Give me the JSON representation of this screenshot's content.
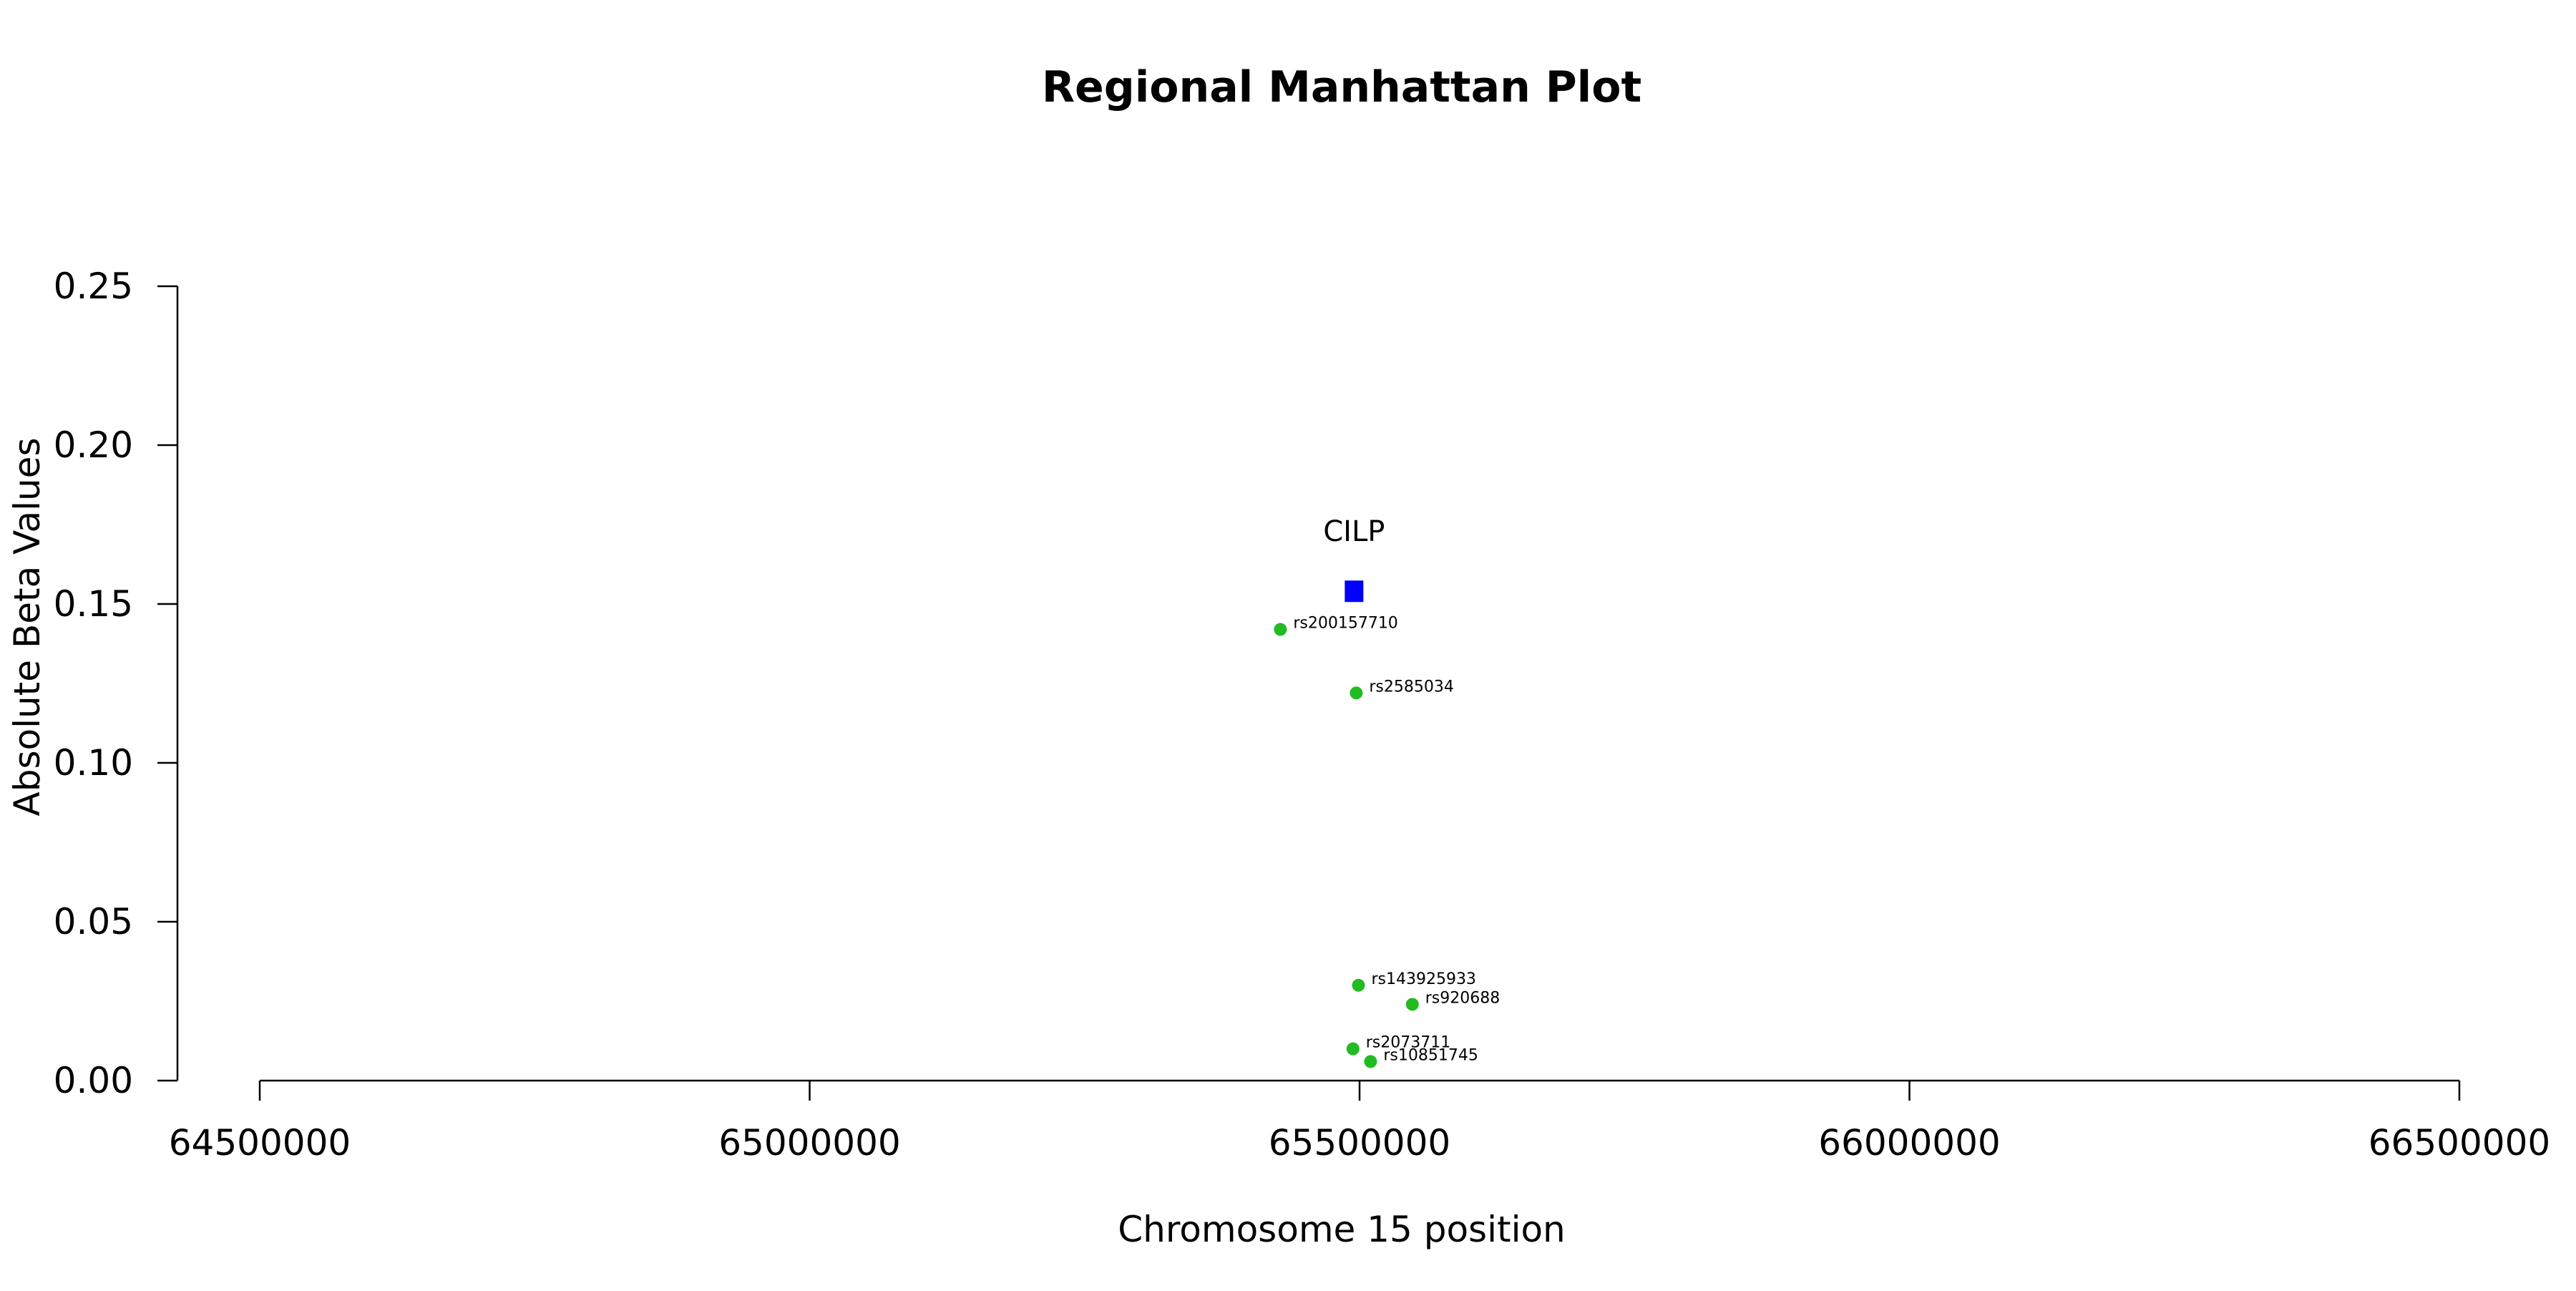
{
  "chart_data": {
    "type": "scatter",
    "title": "Regional Manhattan Plot",
    "xlabel": "Chromosome 15 position",
    "ylabel": "Absolute Beta Values",
    "xlim": [
      64500000,
      66500000
    ],
    "ylim": [
      0,
      0.25
    ],
    "x_ticks": [
      64500000,
      65000000,
      65500000,
      66000000,
      66500000
    ],
    "x_tick_labels": [
      "64500000",
      "65000000",
      "65500000",
      "66000000",
      "66500000"
    ],
    "y_ticks": [
      0,
      0.05,
      0.1,
      0.15,
      0.2,
      0.25
    ],
    "y_tick_labels": [
      "0.00",
      "0.05",
      "0.10",
      "0.15",
      "0.20",
      "0.25"
    ],
    "grid": false,
    "gene": {
      "label": "CILP",
      "x": 65495000,
      "y": 0.154,
      "color": "#0000ff",
      "marker": "square"
    },
    "snp_color": "#22bb22",
    "points": [
      {
        "label": "rs200157710",
        "x": 65428000,
        "y": 0.142
      },
      {
        "label": "rs2585034",
        "x": 65497000,
        "y": 0.122
      },
      {
        "label": "rs143925933",
        "x": 65499000,
        "y": 0.03
      },
      {
        "label": "rs920688",
        "x": 65548000,
        "y": 0.024
      },
      {
        "label": "rs2073711",
        "x": 65494000,
        "y": 0.01
      },
      {
        "label": "rs10851745",
        "x": 65510000,
        "y": 0.006
      }
    ]
  }
}
